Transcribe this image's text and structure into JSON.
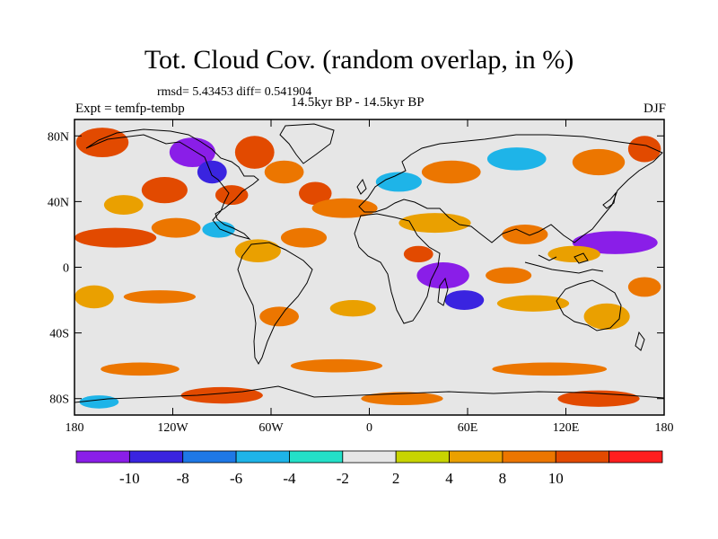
{
  "chart_data": {
    "type": "heatmap",
    "title": "Tot. Cloud Cov. (random overlap, in %)",
    "stats_label": "rmsd= 5.43453 diff= 0.541904",
    "experiment_label": "Expt = temfp-tembp",
    "period_label": "14.5kyr BP - 14.5kyr BP",
    "season_label": "DJF",
    "x_range": [
      -180,
      180
    ],
    "y_range": [
      -90,
      90
    ],
    "x_ticks": [
      {
        "value": -180,
        "label": "180"
      },
      {
        "value": -120,
        "label": "120W"
      },
      {
        "value": -60,
        "label": "60W"
      },
      {
        "value": 0,
        "label": "0"
      },
      {
        "value": 60,
        "label": "60E"
      },
      {
        "value": 120,
        "label": "120E"
      },
      {
        "value": 180,
        "label": "180"
      }
    ],
    "y_ticks": [
      {
        "value": 80,
        "label": "80N"
      },
      {
        "value": 40,
        "label": "40N"
      },
      {
        "value": 0,
        "label": "0"
      },
      {
        "value": -40,
        "label": "40S"
      },
      {
        "value": -80,
        "label": "80S"
      }
    ],
    "colorbar": {
      "levels": [
        -12,
        -10,
        -8,
        -6,
        -4,
        -2,
        2,
        4,
        8,
        10,
        12
      ],
      "colors": [
        "#8a1ee8",
        "#3a24e0",
        "#1e78e6",
        "#1eb4e8",
        "#23e0c8",
        "#e6e6e6",
        "#c8d400",
        "#eaa000",
        "#ec7600",
        "#e24a00",
        "#ff1e1e"
      ],
      "labels": [
        {
          "value": -10,
          "label": "-10"
        },
        {
          "value": -8,
          "label": "-8"
        },
        {
          "value": -6,
          "label": "-6"
        },
        {
          "value": -4,
          "label": "-4"
        },
        {
          "value": -2,
          "label": "-2"
        },
        {
          "value": 2,
          "label": "2"
        },
        {
          "value": 4,
          "label": "4"
        },
        {
          "value": 8,
          "label": "8"
        },
        {
          "value": 10,
          "label": "10"
        }
      ]
    },
    "regions": [
      {
        "lon": -163,
        "lat": 76,
        "rx": 16,
        "ry": 9,
        "value": 10.5
      },
      {
        "lon": -108,
        "lat": 70,
        "rx": 14,
        "ry": 9,
        "value": -11
      },
      {
        "lon": -96,
        "lat": 58,
        "rx": 9,
        "ry": 7,
        "value": -9
      },
      {
        "lon": -125,
        "lat": 47,
        "rx": 14,
        "ry": 8,
        "value": 11
      },
      {
        "lon": -84,
        "lat": 44,
        "rx": 10,
        "ry": 6,
        "value": 10.5
      },
      {
        "lon": -70,
        "lat": 70,
        "rx": 12,
        "ry": 10,
        "value": 11
      },
      {
        "lon": -52,
        "lat": 58,
        "rx": 12,
        "ry": 7,
        "value": 9
      },
      {
        "lon": -33,
        "lat": 45,
        "rx": 10,
        "ry": 7,
        "value": 10.5
      },
      {
        "lon": -150,
        "lat": 38,
        "rx": 12,
        "ry": 6,
        "value": 6
      },
      {
        "lon": -155,
        "lat": 18,
        "rx": 25,
        "ry": 6,
        "value": 11
      },
      {
        "lon": -118,
        "lat": 24,
        "rx": 15,
        "ry": 6,
        "value": 9
      },
      {
        "lon": -92,
        "lat": 23,
        "rx": 10,
        "ry": 5,
        "value": -5
      },
      {
        "lon": -68,
        "lat": 10,
        "rx": 14,
        "ry": 7,
        "value": 5
      },
      {
        "lon": -40,
        "lat": 18,
        "rx": 14,
        "ry": 6,
        "value": 9
      },
      {
        "lon": -15,
        "lat": 36,
        "rx": 20,
        "ry": 6,
        "value": 9
      },
      {
        "lon": 18,
        "lat": 52,
        "rx": 14,
        "ry": 6,
        "value": -6
      },
      {
        "lon": 50,
        "lat": 58,
        "rx": 18,
        "ry": 7,
        "value": 8.5
      },
      {
        "lon": 90,
        "lat": 66,
        "rx": 18,
        "ry": 7,
        "value": -5
      },
      {
        "lon": 140,
        "lat": 64,
        "rx": 16,
        "ry": 8,
        "value": 9
      },
      {
        "lon": 168,
        "lat": 72,
        "rx": 10,
        "ry": 8,
        "value": 11
      },
      {
        "lon": 40,
        "lat": 27,
        "rx": 22,
        "ry": 6,
        "value": 6
      },
      {
        "lon": 95,
        "lat": 20,
        "rx": 14,
        "ry": 6,
        "value": 9
      },
      {
        "lon": 150,
        "lat": 15,
        "rx": 26,
        "ry": 7,
        "value": -11
      },
      {
        "lon": 125,
        "lat": 8,
        "rx": 16,
        "ry": 5,
        "value": 5
      },
      {
        "lon": 45,
        "lat": -5,
        "rx": 16,
        "ry": 8,
        "value": -11
      },
      {
        "lon": 58,
        "lat": -20,
        "rx": 12,
        "ry": 6,
        "value": -9
      },
      {
        "lon": 30,
        "lat": 8,
        "rx": 9,
        "ry": 5,
        "value": 11
      },
      {
        "lon": 85,
        "lat": -5,
        "rx": 14,
        "ry": 5,
        "value": 9
      },
      {
        "lon": -168,
        "lat": -18,
        "rx": 12,
        "ry": 7,
        "value": 5
      },
      {
        "lon": -128,
        "lat": -18,
        "rx": 22,
        "ry": 4,
        "value": 8
      },
      {
        "lon": -55,
        "lat": -30,
        "rx": 12,
        "ry": 6,
        "value": 9
      },
      {
        "lon": -10,
        "lat": -25,
        "rx": 14,
        "ry": 5,
        "value": 4
      },
      {
        "lon": 100,
        "lat": -22,
        "rx": 22,
        "ry": 5,
        "value": 4
      },
      {
        "lon": 145,
        "lat": -30,
        "rx": 14,
        "ry": 8,
        "value": 4
      },
      {
        "lon": 168,
        "lat": -12,
        "rx": 10,
        "ry": 6,
        "value": 9
      },
      {
        "lon": -140,
        "lat": -62,
        "rx": 24,
        "ry": 4,
        "value": 8
      },
      {
        "lon": -20,
        "lat": -60,
        "rx": 28,
        "ry": 4,
        "value": 9
      },
      {
        "lon": 110,
        "lat": -62,
        "rx": 35,
        "ry": 4,
        "value": 8
      },
      {
        "lon": -90,
        "lat": -78,
        "rx": 25,
        "ry": 5,
        "value": 11
      },
      {
        "lon": 20,
        "lat": -80,
        "rx": 25,
        "ry": 4,
        "value": 9
      },
      {
        "lon": 140,
        "lat": -80,
        "rx": 25,
        "ry": 5,
        "value": 11
      },
      {
        "lon": -165,
        "lat": -82,
        "rx": 12,
        "ry": 4,
        "value": -5
      }
    ]
  }
}
